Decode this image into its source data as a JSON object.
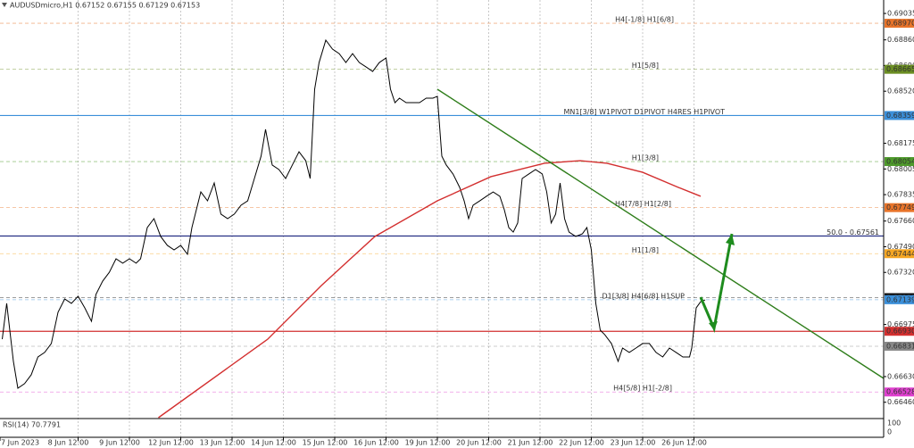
{
  "chart_data": {
    "type": "line",
    "title": "AUDUSDmicro,H1  0.67152 0.67155 0.67129 0.67153",
    "indicator": "RSI(14) 70.7791",
    "indicator_ticks": [
      100,
      0
    ],
    "xlim": [
      0,
      396
    ],
    "ylim": [
      0.66358,
      0.69124
    ],
    "xticks": [
      {
        "value": 0,
        "label": "7 Jun 2023"
      },
      {
        "value": 35,
        "label": "8 Jun 12:00"
      },
      {
        "value": 58,
        "label": "9 Jun 12:00"
      },
      {
        "value": 81,
        "label": "12 Jun 12:00"
      },
      {
        "value": 104,
        "label": "13 Jun 12:00"
      },
      {
        "value": 127,
        "label": "14 Jun 12:00"
      },
      {
        "value": 150,
        "label": "15 Jun 12:00"
      },
      {
        "value": 173,
        "label": "16 Jun 12:00"
      },
      {
        "value": 196,
        "label": "19 Jun 12:00"
      },
      {
        "value": 219,
        "label": "20 Jun 12:00"
      },
      {
        "value": 242,
        "label": "21 Jun 12:00"
      },
      {
        "value": 265,
        "label": "22 Jun 12:00"
      },
      {
        "value": 288,
        "label": "23 Jun 12:00"
      },
      {
        "value": 311,
        "label": "26 Jun 12:00"
      }
    ],
    "yticks": [
      0.69035,
      {
        "value": 0.6886,
        "label": "0.68860"
      },
      {
        "value": 0.6869,
        "label": "0.68690"
      },
      {
        "value": 0.6852,
        "label": "0.68520"
      },
      0.68175,
      0.68005,
      0.67835,
      {
        "value": 0.6766,
        "label": "0.67660"
      },
      {
        "value": 0.6749,
        "label": "0.67490"
      },
      {
        "value": 0.6732,
        "label": "0.67320"
      },
      0.66975,
      {
        "value": 0.6663,
        "label": "0.66630"
      },
      {
        "value": 0.6646,
        "label": "0.66460"
      }
    ],
    "grid": true,
    "series": [
      {
        "color": "#000000",
        "x": [
          1,
          3,
          6,
          8,
          11,
          14,
          17,
          20,
          23,
          26,
          29,
          32,
          35,
          38,
          41,
          43,
          46,
          49,
          52,
          55,
          58,
          61,
          63,
          66,
          69,
          72,
          75,
          78,
          81,
          84,
          86,
          88,
          90,
          93,
          96,
          99,
          102,
          105,
          108,
          111,
          114,
          117,
          119,
          122,
          125,
          128,
          131,
          134,
          137,
          139,
          141,
          143,
          146,
          149,
          152,
          155,
          158,
          161,
          164,
          167,
          170,
          173,
          175,
          177,
          179,
          182,
          185,
          188,
          191,
          194,
          196,
          198,
          200,
          203,
          206,
          208,
          210,
          212,
          215,
          218,
          221,
          224,
          226,
          228,
          230,
          232,
          234,
          237,
          240,
          243,
          245,
          247,
          249,
          251,
          253,
          255,
          258,
          261,
          263,
          265,
          267,
          269,
          271,
          274,
          277,
          279,
          282,
          285,
          288,
          291,
          294,
          297,
          300,
          303,
          306,
          309,
          310,
          312,
          314,
          316
        ],
        "values": [
          0.66878,
          0.67115,
          0.66731,
          0.66553,
          0.66583,
          0.66642,
          0.6676,
          0.6679,
          0.66849,
          0.67056,
          0.67144,
          0.67115,
          0.67162,
          0.67085,
          0.66996,
          0.67174,
          0.67262,
          0.67321,
          0.6741,
          0.67381,
          0.6741,
          0.67381,
          0.6741,
          0.67617,
          0.67676,
          0.67558,
          0.67499,
          0.67469,
          0.67499,
          0.6744,
          0.67617,
          0.67735,
          0.67853,
          0.67794,
          0.67912,
          0.67706,
          0.67676,
          0.67706,
          0.67765,
          0.67794,
          0.67942,
          0.6809,
          0.68267,
          0.68031,
          0.68001,
          0.67942,
          0.68031,
          0.68119,
          0.6806,
          0.67942,
          0.68533,
          0.6871,
          0.68858,
          0.68799,
          0.68769,
          0.6871,
          0.68769,
          0.6871,
          0.68681,
          0.68651,
          0.6871,
          0.6874,
          0.68533,
          0.68444,
          0.68474,
          0.68444,
          0.68444,
          0.68444,
          0.68474,
          0.68474,
          0.68486,
          0.6809,
          0.68031,
          0.67972,
          0.67883,
          0.67794,
          0.67676,
          0.67765,
          0.67794,
          0.67824,
          0.67853,
          0.67824,
          0.67735,
          0.67617,
          0.67587,
          0.67647,
          0.67942,
          0.67972,
          0.68001,
          0.67972,
          0.67853,
          0.67647,
          0.67706,
          0.67912,
          0.67676,
          0.67587,
          0.67558,
          0.67576,
          0.67617,
          0.67469,
          0.67115,
          0.66937,
          0.66908,
          0.66849,
          0.66731,
          0.66819,
          0.6679,
          0.66819,
          0.66849,
          0.66849,
          0.6679,
          0.6676,
          0.66819,
          0.6679,
          0.6676,
          0.6676,
          0.66819,
          0.67085,
          0.67126,
          0.67138
        ]
      },
      {
        "color": "#d32f2f",
        "x": [
          71,
          120,
          144,
          168,
          196,
          220,
          244,
          260,
          272,
          288,
          304,
          314
        ],
        "values": [
          0.66358,
          0.66878,
          0.67233,
          0.67558,
          0.67794,
          0.67954,
          0.68043,
          0.6806,
          0.68043,
          0.67983,
          0.67883,
          0.67824
        ]
      },
      {
        "color": "#2e7d1a",
        "x": [
          196,
          396
        ],
        "values": [
          0.68533,
          0.66618
        ]
      }
    ],
    "levels": [
      {
        "name": "H4[-1/8] H1[6/8]",
        "value": 0.6897,
        "value_label": "0.68970",
        "color": "#e8742a"
      },
      {
        "name": "H1[5/8]",
        "value": 0.68665,
        "color": "#6b8e23"
      },
      {
        "name": "MN1[3/8] W1PIVOT D1PIVOT H4RES H1PIVOT",
        "value": 0.68359,
        "color": "#3b8fd9"
      },
      {
        "name": "H1[3/8]",
        "value": 0.68054,
        "color": "#4e9a2b"
      },
      {
        "name": "H4[7/8] H1[2/8]",
        "value": 0.67749,
        "color": "#e8742a"
      },
      {
        "name": "50.0 - 0.67561",
        "value": 0.67561,
        "color": "#1a237e"
      },
      {
        "name": "H1[1/8]",
        "value": 0.67444,
        "color": "#f5a623"
      },
      {
        "value": 0.67153,
        "color": "#111111"
      },
      {
        "name": "D1[3/8] H4[6/8] H1SUP",
        "value": 0.67139,
        "color": "#3b8fd9"
      },
      {
        "value": 0.6693,
        "value_label": "0.66930",
        "color": "#d32f2f"
      },
      {
        "value": 0.66831,
        "color": "#888888"
      },
      {
        "name": "H4[5/8] H1[-2/8]",
        "value": 0.66528,
        "color": "#e040d0"
      }
    ]
  }
}
